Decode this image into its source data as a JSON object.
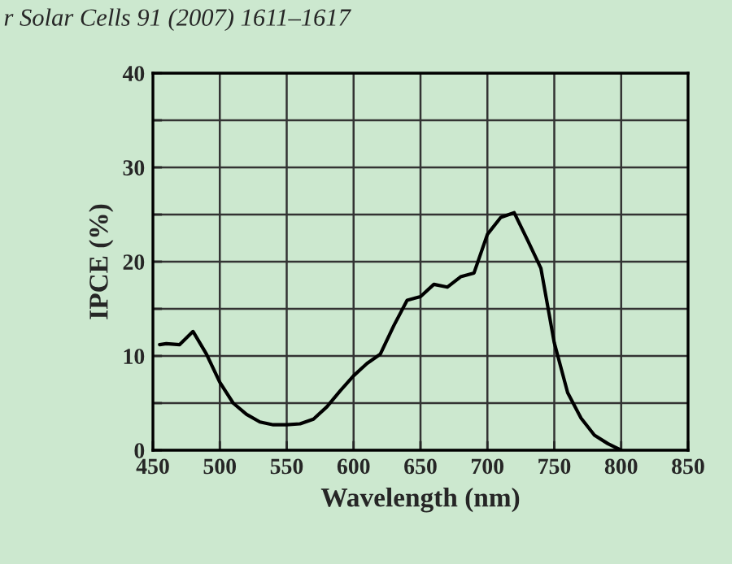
{
  "chart_data": {
    "type": "line",
    "xlabel": "Wavelength (nm)",
    "ylabel": "IPCE (%)",
    "annotations": [
      "r Solar Cells 91 (2007) 1611–1617"
    ],
    "x": [
      455,
      460,
      470,
      480,
      490,
      500,
      510,
      520,
      530,
      540,
      550,
      560,
      570,
      580,
      590,
      600,
      610,
      620,
      630,
      640,
      650,
      660,
      670,
      680,
      690,
      700,
      710,
      720,
      730,
      740,
      750,
      760,
      770,
      780,
      790,
      800
    ],
    "series": [
      {
        "color": "#000000",
        "values": [
          11.2,
          11.3,
          11.2,
          12.6,
          10.2,
          7.2,
          5,
          3.8,
          3,
          2.7,
          2.7,
          2.8,
          3.3,
          4.6,
          6.3,
          7.9,
          9.2,
          10.2,
          13.2,
          15.9,
          16.3,
          17.6,
          17.3,
          18.4,
          18.8,
          22.9,
          24.7,
          25.2,
          22.3,
          19.3,
          11.4,
          6.1,
          3.4,
          1.6,
          0.7,
          0
        ]
      }
    ],
    "xlim": [
      450,
      850
    ],
    "xticks": [
      450,
      500,
      550,
      600,
      650,
      700,
      750,
      800,
      850
    ],
    "ylim": [
      0,
      40
    ],
    "yticks": [
      0,
      {
        "value": 5,
        "label": null
      },
      10,
      {
        "value": 15,
        "label": null
      },
      20,
      {
        "value": 25,
        "label": null
      },
      30,
      {
        "value": 35,
        "label": null
      },
      40
    ],
    "grid": true,
    "legend": false,
    "marker": "none",
    "line_style": "solid"
  }
}
